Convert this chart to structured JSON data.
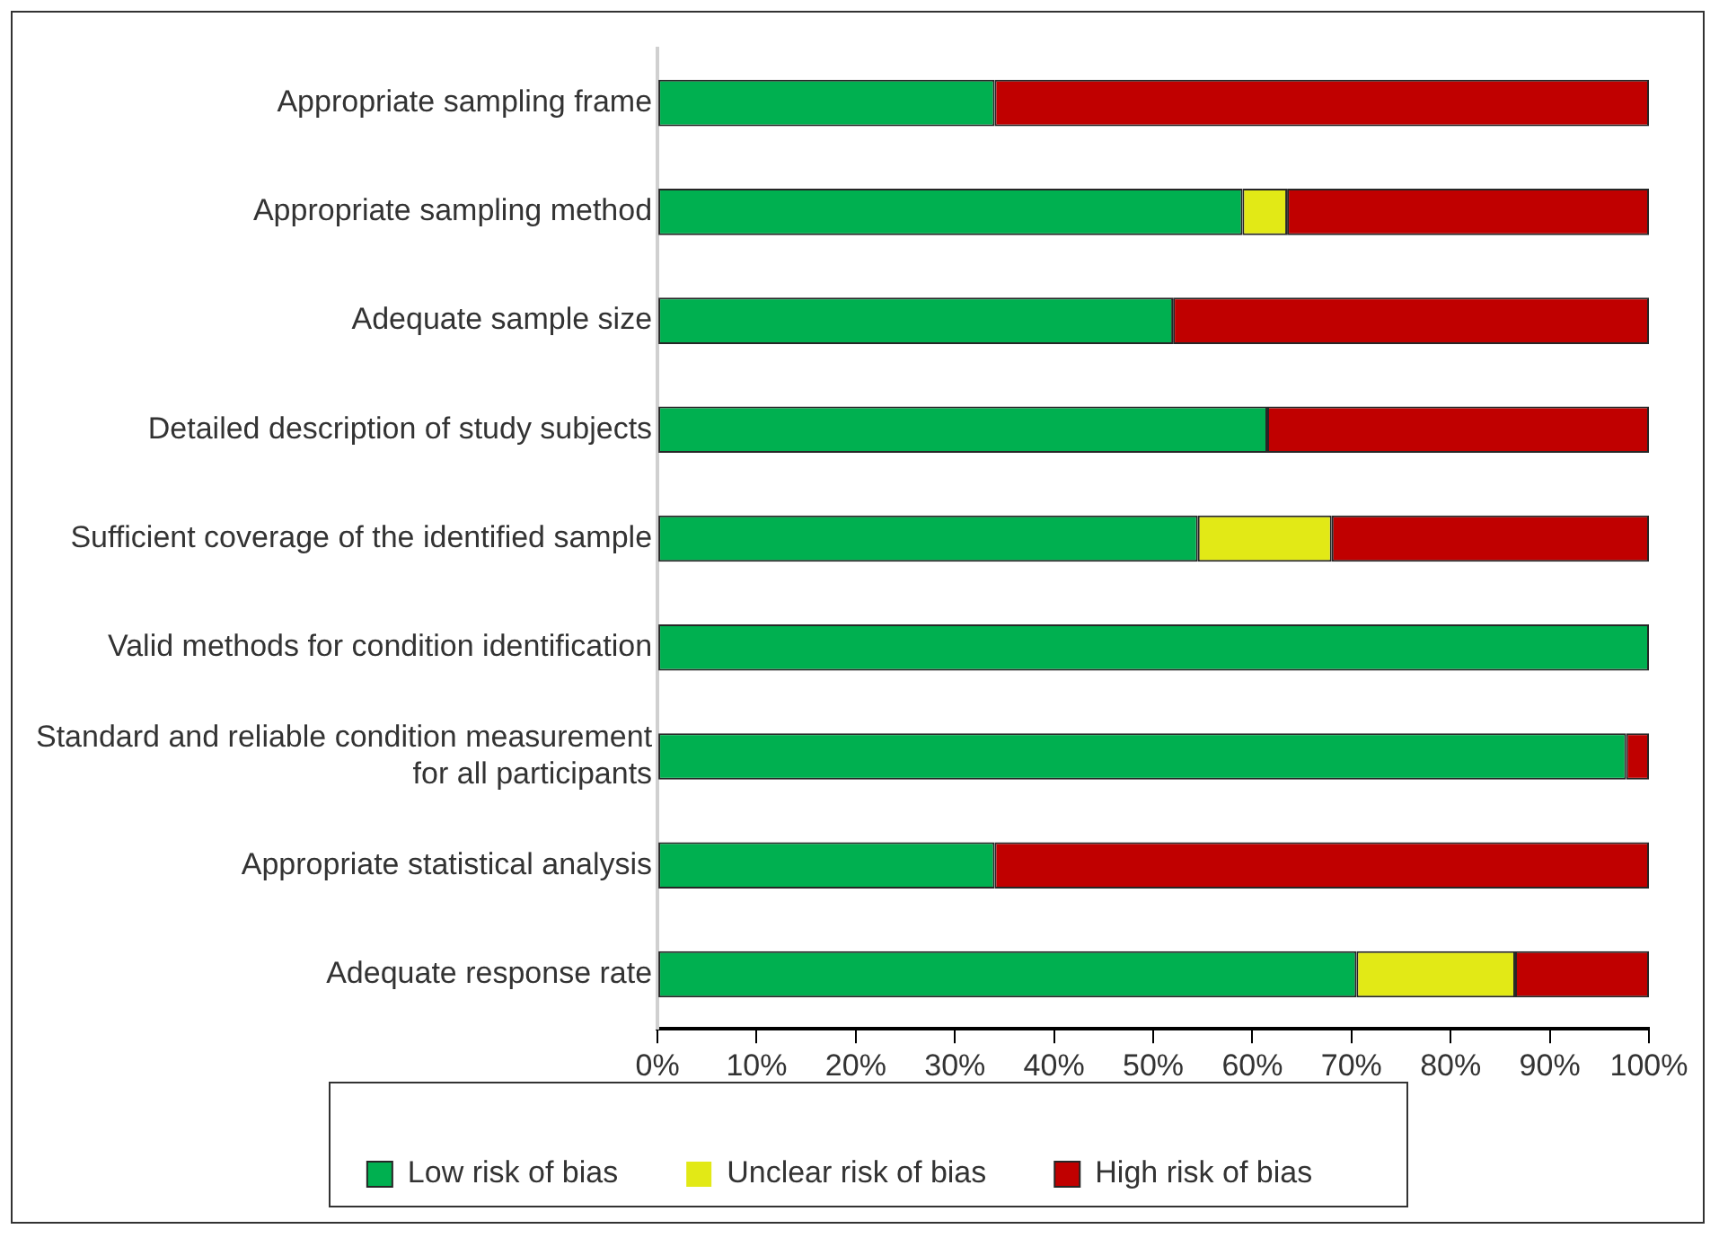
{
  "chart_data": {
    "type": "bar",
    "orientation": "horizontal",
    "stacked": true,
    "categories": [
      "Appropriate sampling frame",
      "Appropriate sampling method",
      "Adequate sample size",
      "Detailed description of study subjects",
      "Sufficient coverage of the identified sample",
      "Valid methods for condition identification",
      "Standard and reliable condition measurement\nfor all participants",
      "Appropriate statistical analysis",
      "Adequate response rate"
    ],
    "series": [
      {
        "name": "Low risk of bias",
        "color": "#00b050",
        "values": [
          34,
          59,
          52,
          61.5,
          54.5,
          100,
          97.7,
          34,
          70.5
        ]
      },
      {
        "name": "Unclear risk of bias",
        "color": "#e2e916",
        "values": [
          0,
          4.5,
          0,
          0,
          13.5,
          0,
          0,
          0,
          16
        ]
      },
      {
        "name": "High risk of bias",
        "color": "#c00000",
        "values": [
          66,
          36.5,
          48,
          38.5,
          32,
          0,
          2.3,
          66,
          13.5
        ]
      }
    ],
    "xlim": [
      0,
      100
    ],
    "xticks": [
      {
        "value": 0,
        "label": "0%"
      },
      {
        "value": 10,
        "label": "10%"
      },
      {
        "value": 20,
        "label": "20%"
      },
      {
        "value": 30,
        "label": "30%"
      },
      {
        "value": 40,
        "label": "40%"
      },
      {
        "value": 50,
        "label": "50%"
      },
      {
        "value": 60,
        "label": "60%"
      },
      {
        "value": 70,
        "label": "70%"
      },
      {
        "value": 80,
        "label": "80%"
      },
      {
        "value": 90,
        "label": "90%"
      },
      {
        "value": 100,
        "label": "100%"
      }
    ],
    "grid": false,
    "legend": "bottom"
  }
}
